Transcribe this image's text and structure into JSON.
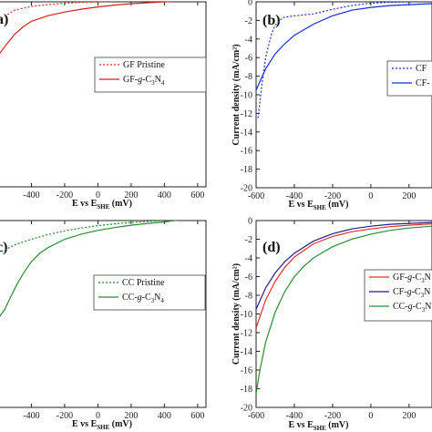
{
  "chart_data": [
    {
      "panel": "(a)",
      "tag_text": "a)",
      "type": "line",
      "xlabel_main": "E vs E",
      "xlabel_sub": "SHE",
      "xlabel_unit": " (mV)",
      "xticks": [
        -400,
        -200,
        0,
        200,
        400,
        600
      ],
      "xlim": [
        -600,
        650
      ],
      "ylim": [
        -20,
        0
      ],
      "legend_position": "center-right",
      "series": [
        {
          "name_main": "GF Pristine",
          "name_parts": [
            "GF Pristine"
          ],
          "color": "#c0392b",
          "dash": "dotted",
          "x": [
            -600,
            -500,
            -400,
            -300,
            -200,
            -100,
            0,
            100,
            200,
            300,
            400,
            500,
            600,
            640
          ],
          "y": [
            -2.0,
            -0.9,
            -0.5,
            -0.3,
            -0.15,
            -0.05,
            0.0,
            0.05,
            0.08,
            0.1,
            0.12,
            0.15,
            0.2,
            0.25
          ]
        },
        {
          "name_main": "GF-g-C3N4",
          "name_parts": [
            "GF-",
            "g",
            "-C",
            "3",
            "N",
            "4"
          ],
          "color": "#d42020",
          "dash": "solid",
          "x": [
            -600,
            -550,
            -500,
            -450,
            -400,
            -300,
            -200,
            -100,
            0,
            100,
            200,
            300,
            400,
            500,
            600,
            640
          ],
          "y": [
            -5.8,
            -4.6,
            -3.5,
            -2.7,
            -2.1,
            -1.5,
            -1.1,
            -0.8,
            -0.55,
            -0.35,
            -0.2,
            -0.1,
            0.0,
            0.1,
            0.2,
            0.25
          ]
        }
      ]
    },
    {
      "panel": "(b)",
      "tag_text": "(b)",
      "type": "line",
      "xlabel_main": "E vs E",
      "xlabel_sub": "SHE",
      "xlabel_unit": " (mV)",
      "ylabel": "Current density (mA/cm²)",
      "xticks": [
        -600,
        -400,
        -200,
        0,
        200
      ],
      "xlim": [
        -600,
        320
      ],
      "yticks": [
        0,
        -2,
        -4,
        -6,
        -8,
        -10,
        -12,
        -14,
        -16,
        -18,
        -20
      ],
      "ylim": [
        -20,
        0
      ],
      "legend_position": "center-right",
      "series": [
        {
          "name_main": "CF",
          "name_parts": [
            "CF"
          ],
          "color": "#2430c0",
          "dash": "dotted",
          "x": [
            -590,
            -570,
            -550,
            -520,
            -500,
            -460,
            -400,
            -300,
            -200,
            -100,
            0,
            100,
            200,
            320
          ],
          "y": [
            -12.5,
            -9.0,
            -6.0,
            -3.5,
            -2.5,
            -1.7,
            -1.5,
            -1.3,
            -0.8,
            -0.4,
            -0.15,
            -0.05,
            0.0,
            0.0
          ]
        },
        {
          "name_main": "CF-",
          "name_parts": [
            "CF-"
          ],
          "color": "#1a2ad8",
          "dash": "solid",
          "x": [
            -600,
            -550,
            -500,
            -450,
            -400,
            -300,
            -200,
            -100,
            0,
            100,
            200,
            320
          ],
          "y": [
            -9.5,
            -7.2,
            -5.6,
            -4.5,
            -3.6,
            -2.4,
            -1.5,
            -0.9,
            -0.6,
            -0.4,
            -0.3,
            -0.2
          ]
        }
      ]
    },
    {
      "panel": "(c)",
      "tag_text": "c)",
      "type": "line",
      "xlabel_main": "E vs E",
      "xlabel_sub": "SHE",
      "xlabel_unit": " (mV)",
      "xticks": [
        -400,
        -200,
        0,
        200,
        400,
        600
      ],
      "xlim": [
        -600,
        650
      ],
      "ylim": [
        -20,
        0
      ],
      "legend_position": "center-right",
      "series": [
        {
          "name_main": "CC Pristine",
          "name_parts": [
            "CC Pristine"
          ],
          "color": "#2e7d32",
          "dash": "dotted",
          "x": [
            -600,
            -500,
            -400,
            -300,
            -200,
            -100,
            0,
            100,
            200,
            300,
            380
          ],
          "y": [
            -3.5,
            -2.6,
            -2.0,
            -1.5,
            -1.1,
            -0.8,
            -0.55,
            -0.35,
            -0.2,
            -0.1,
            0.0
          ]
        },
        {
          "name_main": "CC-g-C3N4",
          "name_parts": [
            "CC-",
            "g",
            "-C",
            "3",
            "N",
            "4"
          ],
          "color": "#2e8b3a",
          "dash": "solid",
          "x": [
            -600,
            -560,
            -520,
            -480,
            -440,
            -400,
            -350,
            -300,
            -200,
            -100,
            0,
            100,
            200,
            300,
            400,
            480,
            500
          ],
          "y": [
            -10.5,
            -9.5,
            -8.0,
            -6.6,
            -5.4,
            -4.4,
            -3.5,
            -2.9,
            -2.0,
            -1.45,
            -1.05,
            -0.75,
            -0.5,
            -0.3,
            -0.15,
            0.05,
            0.45
          ]
        }
      ]
    },
    {
      "panel": "(d)",
      "tag_text": "(d)",
      "type": "line",
      "xlabel_main": "E vs E",
      "xlabel_sub": "SHE",
      "xlabel_unit": " (mV)",
      "ylabel": "Current density (mA/cm²)",
      "xticks": [
        -600,
        -400,
        -200,
        0,
        200
      ],
      "xlim": [
        -600,
        320
      ],
      "yticks": [
        0,
        -2,
        -4,
        -6,
        -8,
        -10,
        -12,
        -14,
        -16,
        -18,
        -20
      ],
      "ylim": [
        -20,
        0
      ],
      "legend_position": "center-right",
      "series": [
        {
          "name_main": "GF-g-C3N",
          "name_parts": [
            "GF-",
            "g",
            "-C",
            "3",
            "N"
          ],
          "color": "#e03030",
          "dash": "solid",
          "x": [
            -600,
            -550,
            -500,
            -450,
            -400,
            -300,
            -200,
            -100,
            0,
            100,
            200,
            320
          ],
          "y": [
            -11.5,
            -8.5,
            -6.5,
            -5.0,
            -3.9,
            -2.5,
            -1.7,
            -1.2,
            -0.9,
            -0.65,
            -0.5,
            -0.35
          ]
        },
        {
          "name_main": "CF-g-C3N",
          "name_parts": [
            "CF-",
            "g",
            "-C",
            "3",
            "N"
          ],
          "color": "#20208a",
          "dash": "solid",
          "x": [
            -600,
            -550,
            -500,
            -450,
            -400,
            -300,
            -200,
            -100,
            0,
            100,
            200,
            320
          ],
          "y": [
            -9.5,
            -7.2,
            -5.6,
            -4.4,
            -3.5,
            -2.2,
            -1.4,
            -0.9,
            -0.6,
            -0.4,
            -0.3,
            -0.2
          ]
        },
        {
          "name_main": "CC-g-C3N",
          "name_parts": [
            "CC-",
            "g",
            "-C",
            "3",
            "N"
          ],
          "color": "#2e8b3a",
          "dash": "solid",
          "x": [
            -600,
            -580,
            -550,
            -500,
            -450,
            -400,
            -350,
            -300,
            -200,
            -100,
            0,
            100,
            200,
            320
          ],
          "y": [
            -18.5,
            -16.0,
            -13.0,
            -9.8,
            -7.6,
            -6.0,
            -4.9,
            -4.0,
            -2.8,
            -2.0,
            -1.45,
            -1.05,
            -0.8,
            -0.6
          ]
        }
      ]
    }
  ]
}
